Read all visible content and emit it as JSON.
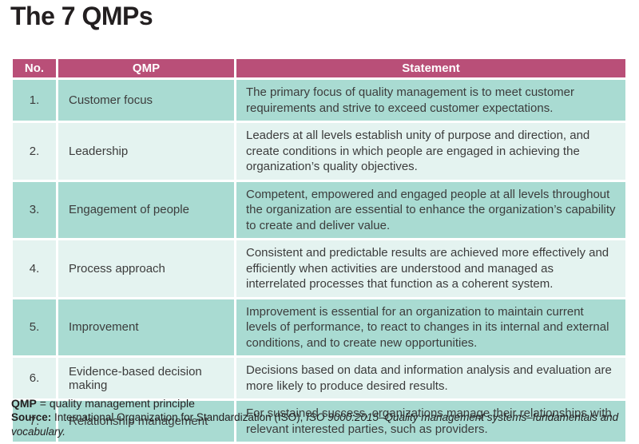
{
  "page_title": "The 7 QMPs",
  "colors": {
    "header_bg": "#b94f78",
    "row_teal": "#a9dbd2",
    "row_light": "#e4f3f0",
    "title_text": "#231f20",
    "header_text": "#ffffff",
    "body_text": "#3c3c3c"
  },
  "table": {
    "headers": {
      "no": "No.",
      "qmp": "QMP",
      "statement": "Statement"
    },
    "rows": [
      {
        "no": "1.",
        "qmp": "Customer focus",
        "statement": "The primary focus of quality management is to meet customer requirements and strive to exceed customer expectations."
      },
      {
        "no": "2.",
        "qmp": "Leadership",
        "statement": "Leaders at all levels establish unity of purpose and direction, and create conditions in which people are engaged in achieving the organization’s quality objectives."
      },
      {
        "no": "3.",
        "qmp": "Engagement of people",
        "statement": "Competent, empowered and engaged people at all levels throughout the organization are essential to enhance the organization’s capability to create and deliver value."
      },
      {
        "no": "4.",
        "qmp": "Process approach",
        "statement": "Consistent and predictable results are achieved more effectively and efficiently when activities are understood and managed as interrelated processes that function as a coherent system."
      },
      {
        "no": "5.",
        "qmp": "Improvement",
        "statement": "Improvement is essential for an organization to maintain current levels of performance, to react to changes in its internal and external conditions, and to create new opportunities."
      },
      {
        "no": "6.",
        "qmp": "Evidence-based decision making",
        "statement": "Decisions based on data and information analysis and evaluation are more likely to produce desired results."
      },
      {
        "no": "7.",
        "qmp": "Relationship management",
        "statement": "For sustained success, organizations manage their relationships with relevant interested parties, such as providers."
      }
    ]
  },
  "footnotes": {
    "abbr_term": "QMP",
    "abbr_rest": " = quality management principle",
    "source_label": "Source:",
    "source_plain": " International Organization for Standardization (ISO), ",
    "source_italic": "ISO 9000:2015–Quality management systems–fundamentals and vocabulary."
  }
}
